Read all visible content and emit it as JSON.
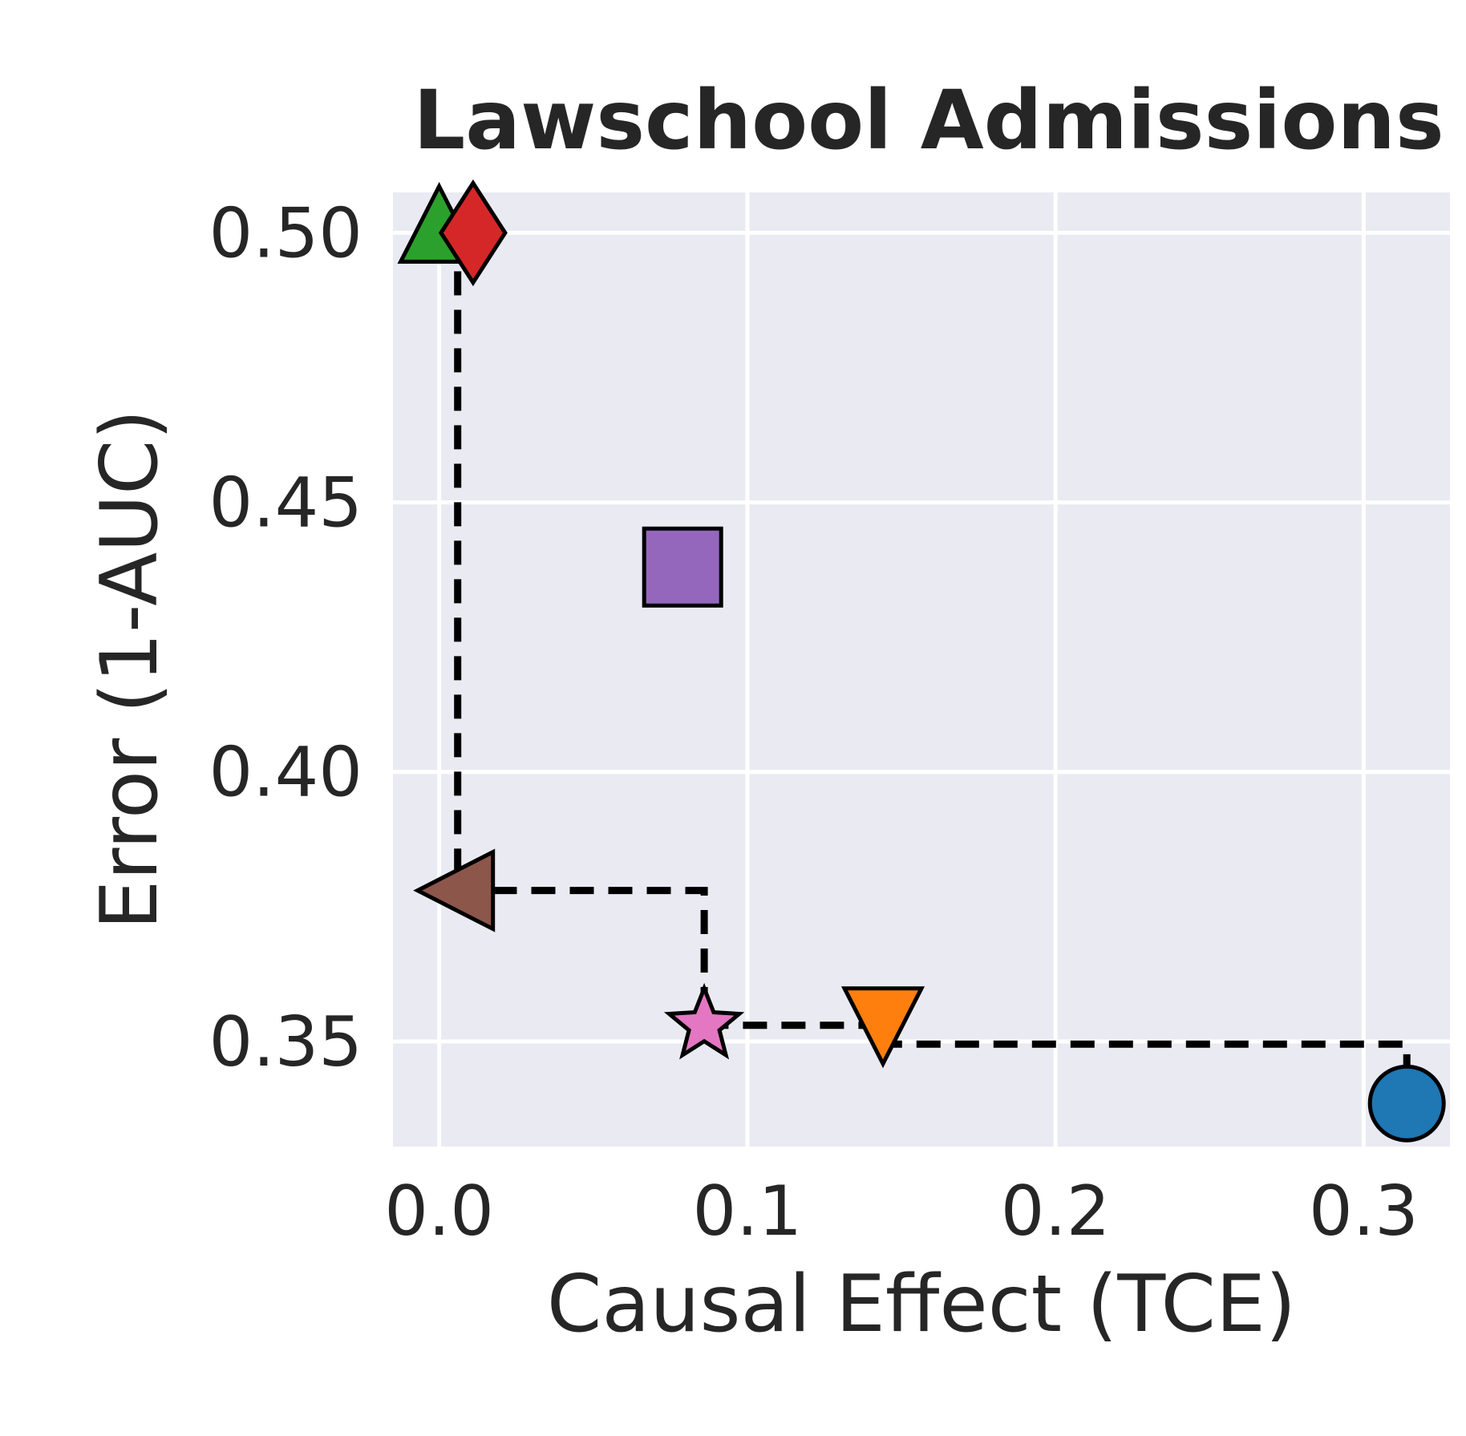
{
  "chart_data": {
    "type": "scatter",
    "title": "Lawschool Admissions",
    "xlabel": "Causal Effect (TCE)",
    "ylabel": "Error (1-AUC)",
    "xlim": [
      -0.015,
      0.328
    ],
    "ylim": [
      0.3305,
      0.5075
    ],
    "xticks": [
      {
        "value": 0.0,
        "label": "0.0"
      },
      {
        "value": 0.1,
        "label": "0.1"
      },
      {
        "value": 0.2,
        "label": "0.2"
      },
      {
        "value": 0.3,
        "label": "0.3"
      }
    ],
    "yticks": [
      {
        "value": 0.35,
        "label": "0.35"
      },
      {
        "value": 0.4,
        "label": "0.40"
      },
      {
        "value": 0.45,
        "label": "0.45"
      },
      {
        "value": 0.5,
        "label": "0.50"
      }
    ],
    "grid": true,
    "background_color": "#eaeaf2",
    "points": [
      {
        "x": 0.0,
        "y": 0.5,
        "marker": "triangle-up",
        "color": "#2ca02c"
      },
      {
        "x": 0.011,
        "y": 0.5,
        "marker": "diamond",
        "color": "#d62728"
      },
      {
        "x": 0.079,
        "y": 0.438,
        "marker": "square",
        "color": "#9467bd"
      },
      {
        "x": 0.006,
        "y": 0.378,
        "marker": "triangle-left",
        "color": "#8c564b"
      },
      {
        "x": 0.086,
        "y": 0.353,
        "marker": "star",
        "color": "#e377c2"
      },
      {
        "x": 0.144,
        "y": 0.353,
        "marker": "triangle-down",
        "color": "#ff7f0e"
      },
      {
        "x": 0.314,
        "y": 0.3385,
        "marker": "circle",
        "color": "#1f77b4"
      }
    ],
    "pareto_front": [
      [
        0.006,
        0.5
      ],
      [
        0.006,
        0.378
      ],
      [
        0.086,
        0.378
      ],
      [
        0.086,
        0.353
      ],
      [
        0.144,
        0.353
      ],
      [
        0.144,
        0.3495
      ],
      [
        0.314,
        0.3495
      ],
      [
        0.314,
        0.3385
      ]
    ]
  }
}
